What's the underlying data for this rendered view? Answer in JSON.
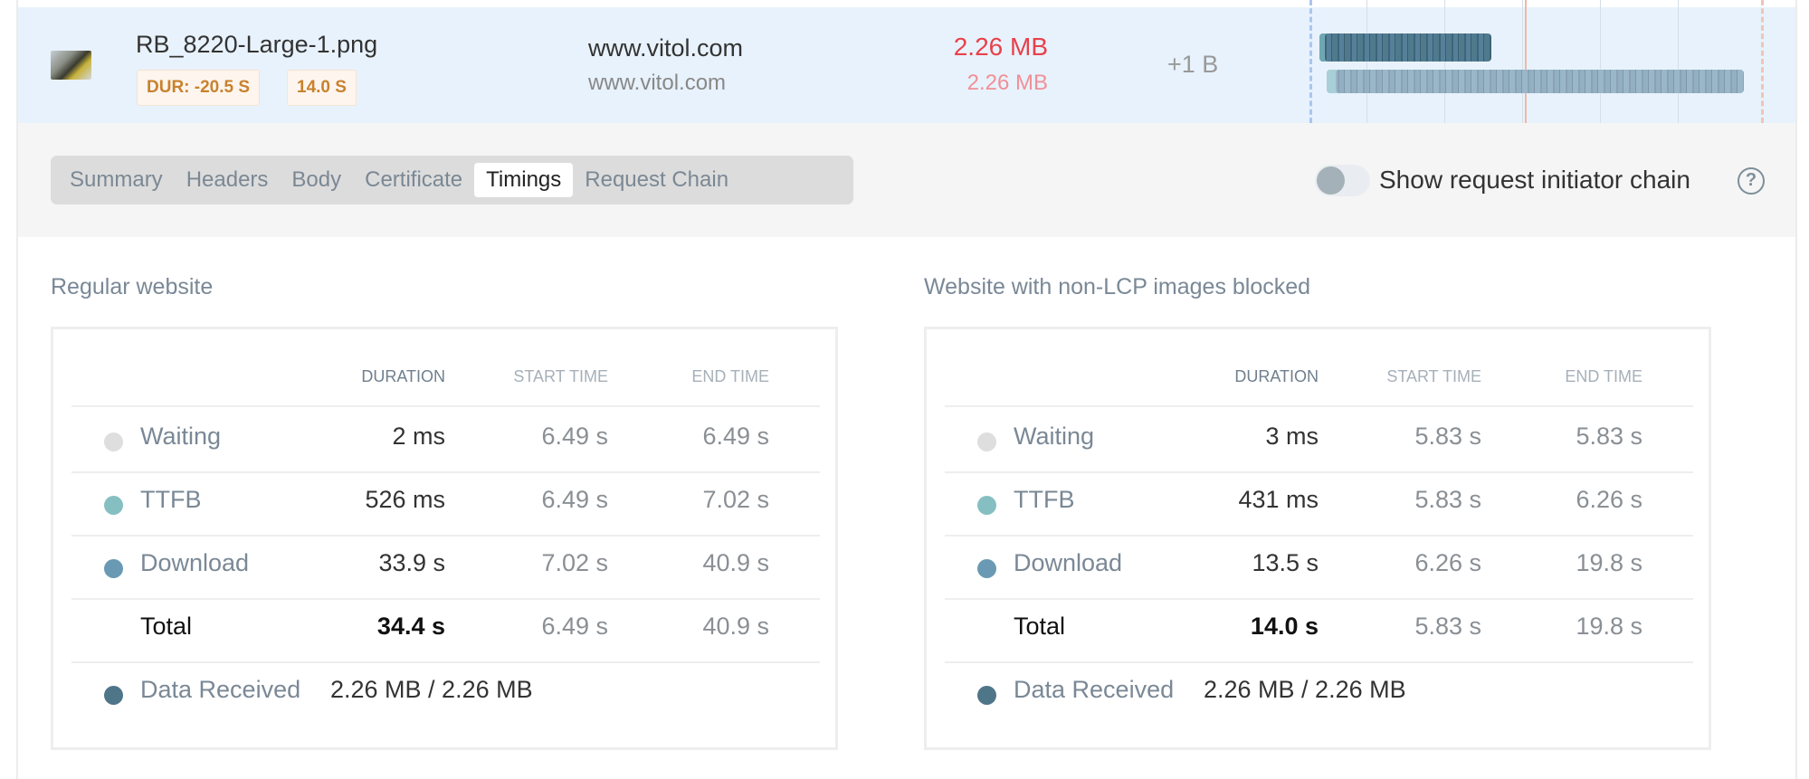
{
  "request": {
    "filename": "RB_8220-Large-1.png",
    "badges": [
      "DUR: -20.5 S",
      "14.0 S"
    ],
    "host_primary": "www.vitol.com",
    "host_secondary": "www.vitol.com",
    "size_primary": "2.26 MB",
    "size_secondary": "2.26 MB",
    "size_delta": "+1 B",
    "thumbnail_icon": "image-thumbnail"
  },
  "tabs": [
    {
      "label": "Summary",
      "active": false
    },
    {
      "label": "Headers",
      "active": false
    },
    {
      "label": "Body",
      "active": false
    },
    {
      "label": "Certificate",
      "active": false
    },
    {
      "label": "Timings",
      "active": true
    },
    {
      "label": "Request Chain",
      "active": false
    }
  ],
  "initiator_toggle": {
    "label": "Show request initiator chain",
    "on": false,
    "help_icon": "question-circle-icon"
  },
  "columns": [
    "DURATION",
    "START TIME",
    "END TIME"
  ],
  "panels": [
    {
      "title": "Regular website",
      "rows": [
        {
          "label": "Waiting",
          "duration": "2 ms",
          "start": "6.49 s",
          "end": "6.49 s"
        },
        {
          "label": "TTFB",
          "duration": "526 ms",
          "start": "6.49 s",
          "end": "7.02 s"
        },
        {
          "label": "Download",
          "duration": "33.9 s",
          "start": "7.02 s",
          "end": "40.9 s"
        },
        {
          "label": "Total",
          "duration": "34.4 s",
          "start": "6.49 s",
          "end": "40.9 s"
        }
      ],
      "data_received_label": "Data Received",
      "data_received": "2.26 MB / 2.26 MB"
    },
    {
      "title": "Website with non-LCP images blocked",
      "rows": [
        {
          "label": "Waiting",
          "duration": "3 ms",
          "start": "5.83 s",
          "end": "5.83 s"
        },
        {
          "label": "TTFB",
          "duration": "431 ms",
          "start": "5.83 s",
          "end": "6.26 s"
        },
        {
          "label": "Download",
          "duration": "13.5 s",
          "start": "6.26 s",
          "end": "19.8 s"
        },
        {
          "label": "Total",
          "duration": "14.0 s",
          "start": "5.83 s",
          "end": "19.8 s"
        }
      ],
      "data_received_label": "Data Received",
      "data_received": "2.26 MB / 2.26 MB"
    }
  ],
  "colors": {
    "waiting": "#dedede",
    "ttfb": "#86bfc2",
    "download": "#6a9ab3",
    "data_received": "#4f7589",
    "size_red": "#e8414a",
    "badge_text": "#c8822e",
    "row_highlight": "#e8f2fc"
  }
}
